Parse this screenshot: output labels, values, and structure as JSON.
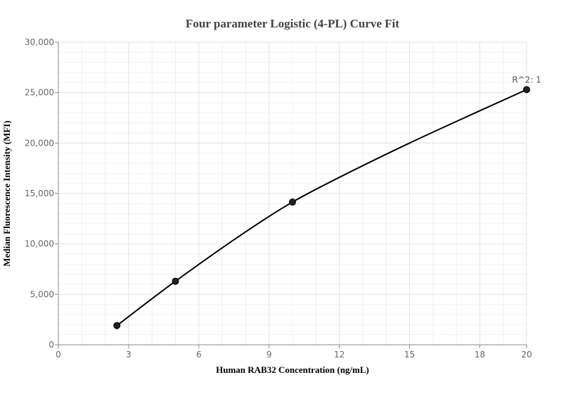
{
  "chart_data": {
    "type": "line",
    "title": "Four parameter Logistic (4-PL) Curve Fit",
    "xlabel": "Human RAB32 Concentration (ng/mL)",
    "ylabel": "Median Fluorescence Intensity (MFI)",
    "xlim": [
      0,
      20
    ],
    "ylim": [
      0,
      30000
    ],
    "x_ticks": [
      0,
      3,
      6,
      9,
      12,
      15,
      18,
      20
    ],
    "x_tick_labels": [
      "0",
      "3",
      "6",
      "9",
      "12",
      "15",
      "18",
      "20"
    ],
    "y_ticks": [
      0,
      5000,
      10000,
      15000,
      20000,
      25000,
      30000
    ],
    "y_tick_labels": [
      "0",
      "5,000",
      "10,000",
      "15,000",
      "20,000",
      "25,000",
      "30,000"
    ],
    "grid": true,
    "series": [
      {
        "points": [
          {
            "x": 2.5,
            "y": 1900
          },
          {
            "x": 5,
            "y": 6300
          },
          {
            "x": 10,
            "y": 14150
          },
          {
            "x": 20,
            "y": 25300
          }
        ],
        "curve": [
          {
            "x": 2.5,
            "y": 1900
          },
          {
            "x": 5,
            "y": 6300
          },
          {
            "x": 8,
            "y": 11200
          },
          {
            "x": 10,
            "y": 14150
          },
          {
            "x": 12,
            "y": 16600
          },
          {
            "x": 15,
            "y": 20000
          },
          {
            "x": 18,
            "y": 23200
          },
          {
            "x": 20,
            "y": 25300
          }
        ]
      }
    ],
    "annotation": {
      "text": "R^2: 1",
      "x": 20,
      "y": 25300
    },
    "colors": {
      "line": "#000000",
      "marker": "#222222",
      "grid": "#e6e6e6",
      "axis": "#888888"
    }
  }
}
